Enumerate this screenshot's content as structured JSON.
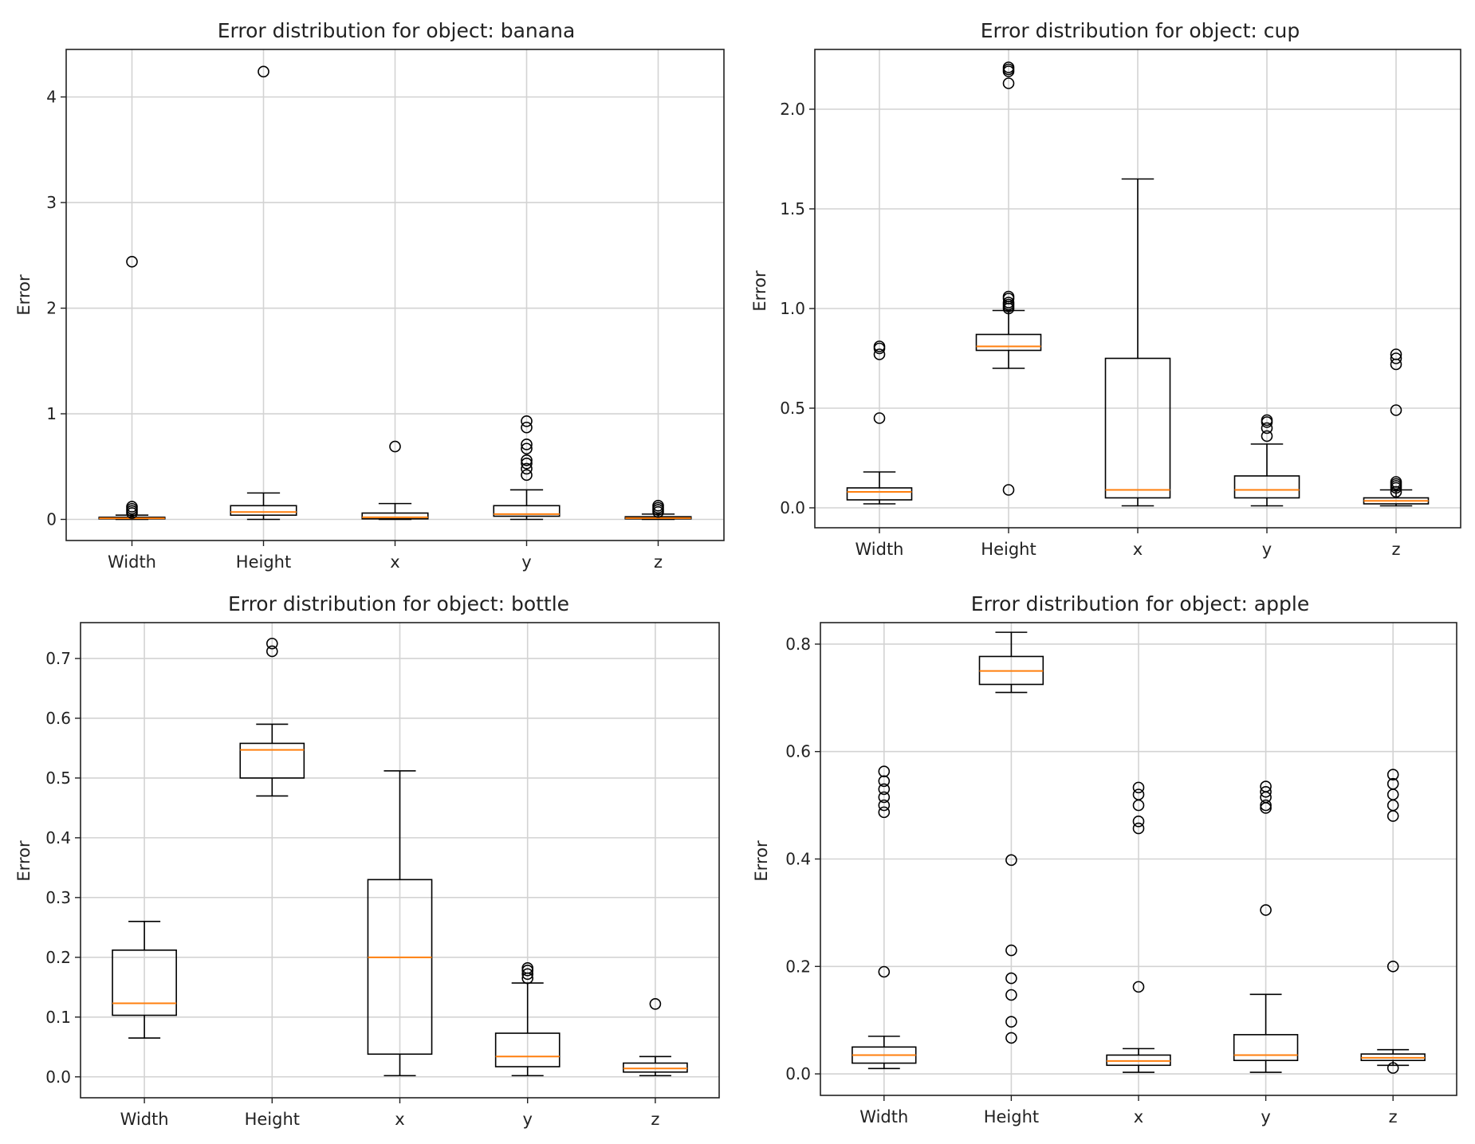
{
  "chart_data": [
    {
      "type": "boxplot",
      "title": "Error distribution for object: banana",
      "ylabel": "Error",
      "xlabel": "",
      "categories": [
        "Width",
        "Height",
        "x",
        "y",
        "z"
      ],
      "ylim": [
        -0.2,
        4.45
      ],
      "yticks": [
        0,
        1,
        2,
        3,
        4
      ],
      "grid": true,
      "boxes": [
        {
          "whislo": 0.0,
          "q1": 0.005,
          "med": 0.01,
          "q3": 0.02,
          "whishi": 0.04,
          "fliers": [
            0.06,
            0.08,
            0.1,
            0.12,
            2.44
          ]
        },
        {
          "whislo": 0.0,
          "q1": 0.04,
          "med": 0.07,
          "q3": 0.13,
          "whishi": 0.25,
          "fliers": [
            4.24
          ]
        },
        {
          "whislo": 0.0,
          "q1": 0.005,
          "med": 0.02,
          "q3": 0.06,
          "whishi": 0.15,
          "fliers": [
            0.69
          ]
        },
        {
          "whislo": 0.0,
          "q1": 0.03,
          "med": 0.05,
          "q3": 0.13,
          "whishi": 0.28,
          "fliers": [
            0.42,
            0.48,
            0.53,
            0.56,
            0.67,
            0.71,
            0.87,
            0.93
          ]
        },
        {
          "whislo": 0.0,
          "q1": 0.005,
          "med": 0.012,
          "q3": 0.025,
          "whishi": 0.05,
          "fliers": [
            0.07,
            0.09,
            0.11,
            0.13
          ]
        }
      ]
    },
    {
      "type": "boxplot",
      "title": "Error distribution for object: cup",
      "ylabel": "Error",
      "xlabel": "",
      "categories": [
        "Width",
        "Height",
        "x",
        "y",
        "z"
      ],
      "ylim": [
        -0.1,
        2.3
      ],
      "yticks": [
        0.0,
        0.5,
        1.0,
        1.5,
        2.0
      ],
      "ytick_labels": [
        "0.0",
        "0.5",
        "1.0",
        "1.5",
        "2.0"
      ],
      "grid": true,
      "boxes": [
        {
          "whislo": 0.02,
          "q1": 0.04,
          "med": 0.08,
          "q3": 0.1,
          "whishi": 0.18,
          "fliers": [
            0.45,
            0.77,
            0.8,
            0.81
          ]
        },
        {
          "whislo": 0.7,
          "q1": 0.79,
          "med": 0.81,
          "q3": 0.87,
          "whishi": 0.99,
          "fliers": [
            0.09,
            1.0,
            1.01,
            1.02,
            1.03,
            1.05,
            1.06,
            2.13,
            2.19,
            2.2,
            2.21
          ]
        },
        {
          "whislo": 0.01,
          "q1": 0.05,
          "med": 0.09,
          "q3": 0.75,
          "whishi": 1.65,
          "fliers": []
        },
        {
          "whislo": 0.01,
          "q1": 0.05,
          "med": 0.09,
          "q3": 0.16,
          "whishi": 0.32,
          "fliers": [
            0.36,
            0.4,
            0.43,
            0.44
          ]
        },
        {
          "whislo": 0.01,
          "q1": 0.02,
          "med": 0.035,
          "q3": 0.05,
          "whishi": 0.09,
          "fliers": [
            0.08,
            0.1,
            0.11,
            0.12,
            0.13,
            0.49,
            0.72,
            0.75,
            0.77
          ]
        }
      ]
    },
    {
      "type": "boxplot",
      "title": "Error distribution for object: bottle",
      "ylabel": "Error",
      "xlabel": "",
      "categories": [
        "Width",
        "Height",
        "x",
        "y",
        "z"
      ],
      "ylim": [
        -0.035,
        0.76
      ],
      "yticks": [
        0.0,
        0.1,
        0.2,
        0.3,
        0.4,
        0.5,
        0.6,
        0.7
      ],
      "ytick_labels": [
        "0.0",
        "0.1",
        "0.2",
        "0.3",
        "0.4",
        "0.5",
        "0.6",
        "0.7"
      ],
      "grid": true,
      "boxes": [
        {
          "whislo": 0.065,
          "q1": 0.103,
          "med": 0.123,
          "q3": 0.212,
          "whishi": 0.26,
          "fliers": []
        },
        {
          "whislo": 0.47,
          "q1": 0.5,
          "med": 0.547,
          "q3": 0.558,
          "whishi": 0.59,
          "fliers": [
            0.712,
            0.725
          ]
        },
        {
          "whislo": 0.002,
          "q1": 0.038,
          "med": 0.2,
          "q3": 0.33,
          "whishi": 0.512,
          "fliers": []
        },
        {
          "whislo": 0.002,
          "q1": 0.017,
          "med": 0.034,
          "q3": 0.073,
          "whishi": 0.157,
          "fliers": [
            0.165,
            0.172,
            0.178,
            0.182
          ]
        },
        {
          "whislo": 0.002,
          "q1": 0.008,
          "med": 0.014,
          "q3": 0.023,
          "whishi": 0.034,
          "fliers": [
            0.122
          ]
        }
      ]
    },
    {
      "type": "boxplot",
      "title": "Error distribution for object: apple",
      "ylabel": "Error",
      "xlabel": "",
      "categories": [
        "Width",
        "Height",
        "x",
        "y",
        "z"
      ],
      "ylim": [
        -0.04,
        0.84
      ],
      "yticks": [
        0.0,
        0.2,
        0.4,
        0.6,
        0.8
      ],
      "ytick_labels": [
        "0.0",
        "0.2",
        "0.4",
        "0.6",
        "0.8"
      ],
      "grid": true,
      "boxes": [
        {
          "whislo": 0.01,
          "q1": 0.02,
          "med": 0.035,
          "q3": 0.05,
          "whishi": 0.07,
          "fliers": [
            0.19,
            0.487,
            0.5,
            0.515,
            0.53,
            0.545,
            0.563
          ]
        },
        {
          "whislo": 0.71,
          "q1": 0.725,
          "med": 0.75,
          "q3": 0.777,
          "whishi": 0.822,
          "fliers": [
            0.067,
            0.097,
            0.147,
            0.178,
            0.23,
            0.398
          ]
        },
        {
          "whislo": 0.003,
          "q1": 0.016,
          "med": 0.024,
          "q3": 0.035,
          "whishi": 0.047,
          "fliers": [
            0.162,
            0.457,
            0.47,
            0.5,
            0.52,
            0.533
          ]
        },
        {
          "whislo": 0.003,
          "q1": 0.025,
          "med": 0.035,
          "q3": 0.073,
          "whishi": 0.148,
          "fliers": [
            0.305,
            0.495,
            0.5,
            0.515,
            0.525,
            0.535
          ]
        },
        {
          "whislo": 0.016,
          "q1": 0.025,
          "med": 0.03,
          "q3": 0.037,
          "whishi": 0.045,
          "fliers": [
            0.011,
            0.2,
            0.48,
            0.5,
            0.52,
            0.54,
            0.557
          ]
        }
      ]
    }
  ]
}
